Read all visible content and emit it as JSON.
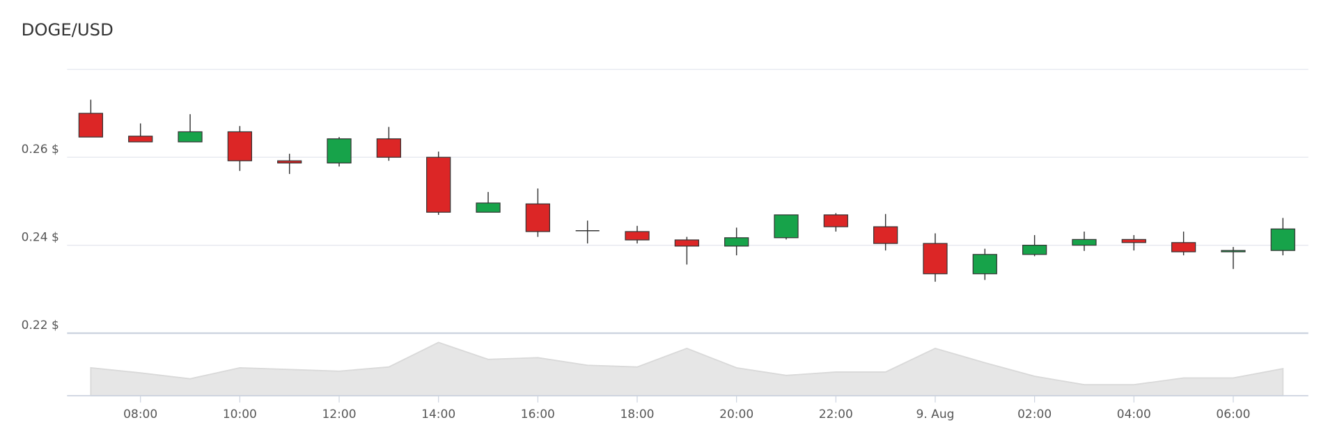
{
  "chart_data": {
    "type": "candlestick",
    "title": "DOGE/USD",
    "categories": [
      null,
      "08:00",
      null,
      "10:00",
      null,
      "12:00",
      null,
      "14:00",
      null,
      "16:00",
      null,
      "18:00",
      null,
      "20:00",
      null,
      "22:00",
      null,
      "9. Aug",
      null,
      "02:00",
      null,
      "04:00",
      null,
      "06:00",
      null
    ],
    "open": [
      0.27,
      0.2648,
      0.2635,
      0.2658,
      0.2592,
      0.2587,
      0.2642,
      0.26,
      0.2475,
      0.2494,
      0.2433,
      0.2431,
      0.2412,
      0.2398,
      0.2417,
      0.2469,
      0.2442,
      0.2404,
      0.2335,
      0.2379,
      0.24,
      0.2413,
      0.2406,
      0.2385,
      0.2388
    ],
    "high": [
      0.2731,
      0.2677,
      0.2698,
      0.2671,
      0.2608,
      0.2646,
      0.2669,
      0.2613,
      0.2521,
      0.2529,
      0.2456,
      0.2444,
      0.2419,
      0.244,
      0.2469,
      0.2473,
      0.2471,
      0.2427,
      0.2392,
      0.2423,
      0.2431,
      0.2423,
      0.2431,
      0.2396,
      0.2462
    ],
    "low": [
      0.2646,
      0.2635,
      0.2635,
      0.2569,
      0.2562,
      0.2579,
      0.2592,
      0.2469,
      0.2475,
      0.2419,
      0.2404,
      0.2404,
      0.2356,
      0.2377,
      0.2413,
      0.2431,
      0.2388,
      0.2317,
      0.2321,
      0.2375,
      0.2387,
      0.2388,
      0.2377,
      0.2346,
      0.2377
    ],
    "close": [
      0.2646,
      0.2635,
      0.2658,
      0.2592,
      0.2587,
      0.2642,
      0.26,
      0.2475,
      0.2496,
      0.2431,
      0.2433,
      0.2412,
      0.2398,
      0.2417,
      0.2469,
      0.2442,
      0.2404,
      0.2335,
      0.2379,
      0.24,
      0.2413,
      0.2406,
      0.2385,
      0.2388,
      0.2437
    ],
    "up_color": "#17a34a",
    "down_color": "#dc2626",
    "ylim": [
      0.22,
      0.28
    ],
    "yticks": [
      {
        "value": 0.22,
        "label": "0.22 $"
      },
      {
        "value": 0.24,
        "label": "0.24 $"
      },
      {
        "value": 0.26,
        "label": "0.26 $"
      }
    ],
    "grid": true,
    "volume": {
      "type": "area",
      "values": [
        33,
        27,
        20,
        33,
        31,
        29,
        34,
        63,
        43,
        45,
        36,
        34,
        56,
        33,
        24,
        28,
        28,
        56,
        39,
        23,
        13,
        13,
        21,
        21,
        32
      ],
      "ylim": [
        0,
        70
      ],
      "color": "#e6e6e6"
    }
  }
}
